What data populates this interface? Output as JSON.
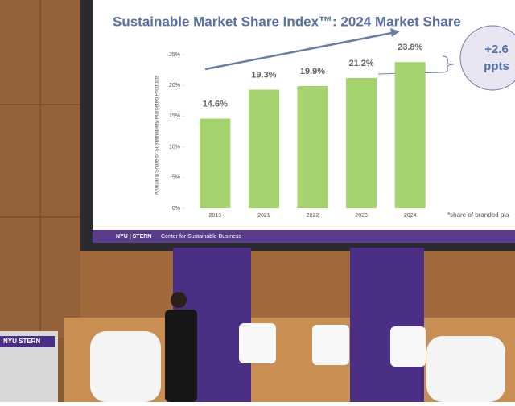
{
  "chart_data": {
    "type": "bar",
    "title": "Sustainable Market Share Index™: 2024 Market Share",
    "ylabel": "Annual $ Share of Sustainability-Marketed Products",
    "categories": [
      "2013",
      "2021",
      "2022",
      "2023",
      "2024"
    ],
    "values": [
      14.6,
      19.3,
      19.9,
      21.2,
      23.8
    ],
    "value_labels": [
      "14.6%",
      "19.3%",
      "19.9%",
      "21.2%",
      "23.8%"
    ],
    "color": "#a5d46e",
    "ylim": [
      0,
      25
    ],
    "yticks": [
      {
        "value": 0,
        "label": "0%"
      },
      {
        "value": 5,
        "label": "5%"
      },
      {
        "value": 10,
        "label": "10%"
      },
      {
        "value": 15,
        "label": "15%"
      },
      {
        "value": 20,
        "label": "20%"
      },
      {
        "value": 25,
        "label": "25%"
      }
    ],
    "annotation": [
      "+2.6",
      "ppts"
    ],
    "footnote": "*share of branded pla"
  },
  "slide_footer": {
    "logo": "NYU | STERN",
    "center": "Center for Sustainable Business"
  },
  "podium_sign": "NYU STERN"
}
